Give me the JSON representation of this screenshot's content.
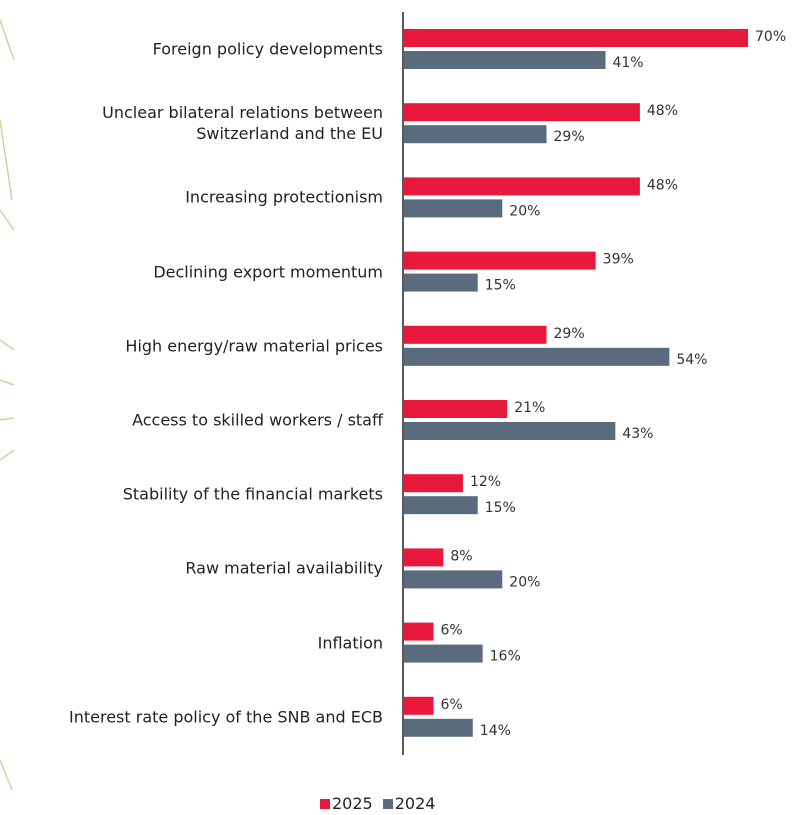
{
  "chart_data": {
    "type": "bar",
    "orientation": "horizontal",
    "categories": [
      "Foreign policy developments",
      "Unclear bilateral relations between\nSwitzerland and the EU",
      "Increasing protectionism",
      "Declining export momentum",
      "High energy/raw material prices",
      "Access to skilled workers / staff",
      "Stability of the financial markets",
      "Raw material availability",
      "Inflation",
      "Interest rate policy of the SNB and ECB"
    ],
    "series": [
      {
        "name": "2025",
        "color": "#e8193c",
        "values": [
          70,
          48,
          48,
          39,
          29,
          21,
          12,
          8,
          6,
          6
        ],
        "value_labels": [
          "70%",
          "48%",
          "48%",
          "39%",
          "29%",
          "21%",
          "12%",
          "8%",
          "6%",
          "6%"
        ]
      },
      {
        "name": "2024",
        "color": "#5a6b7d",
        "values": [
          41,
          29,
          20,
          15,
          54,
          43,
          15,
          20,
          16,
          14
        ],
        "value_labels": [
          "41%",
          "29%",
          "20%",
          "15%",
          "54%",
          "43%",
          "15%",
          "20%",
          "16%",
          "14%"
        ]
      }
    ],
    "legend_position": "bottom"
  }
}
